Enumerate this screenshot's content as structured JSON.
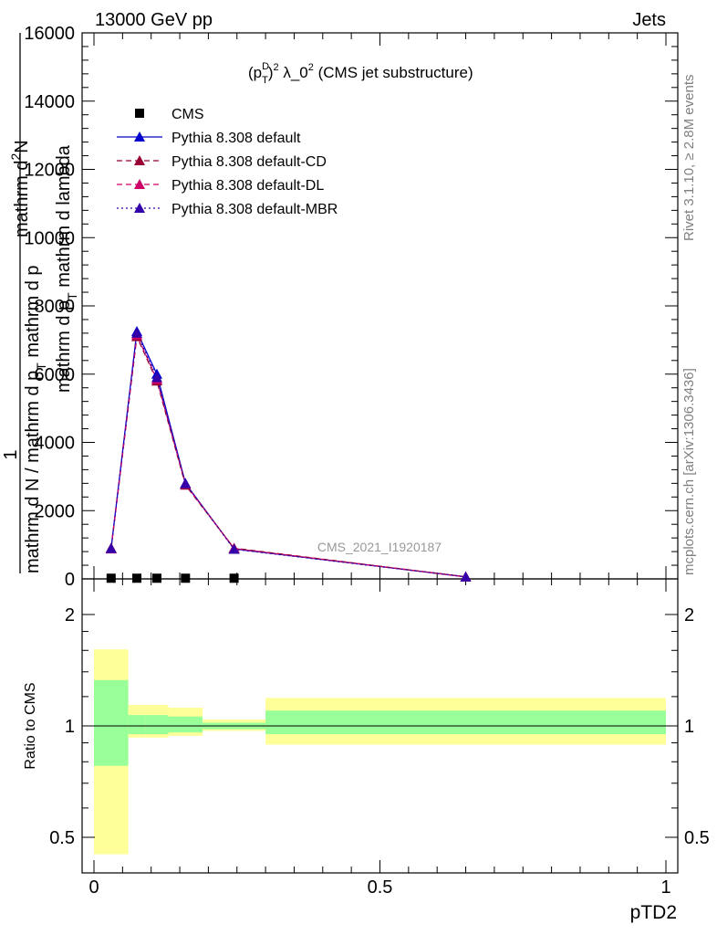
{
  "header": {
    "left": "13000 GeV pp",
    "right": "Jets"
  },
  "side_text": {
    "rivet": "Rivet 3.1.10, ≥ 2.8M events",
    "mcplots": "mcplots.cern.ch [arXiv:1306.3436]"
  },
  "watermark": "CMS_2021_I1920187",
  "ratio_ylabel": "Ratio to CMS",
  "chart_data": [
    {
      "type": "line",
      "title_parts": {
        "p": "(p",
        "sup_d": "D",
        "sub_t": "T",
        "close": ")",
        "sup_2": "2",
        "lambda": " λ_0",
        "sup_2b": "2",
        "tail": " (CMS jet substructure)"
      },
      "ylabel_parts": {
        "one": "1",
        "numerator_top": "mathrm d",
        "numerator_sup": "2",
        "numerator_N": "N",
        "denom_top": "mathrm d p",
        "denom_top_sub": "T",
        "denom_top_tail": " mathrm d lambda",
        "main": "mathrm d N / mathrm d p",
        "main_sub": "T",
        "main_tail": " mathrm d p"
      },
      "xlabel": "pTD2",
      "xlim": [
        0,
        1
      ],
      "ylim": [
        0,
        16000
      ],
      "yticks": [
        "0",
        "2000",
        "4000",
        "6000",
        "8000",
        "10000",
        "12000",
        "14000",
        "16000"
      ],
      "xticks": [
        "0",
        "0.5",
        "1"
      ],
      "legend_placement": "top-left",
      "series": [
        {
          "name": "CMS",
          "marker": "square",
          "color": "#000000",
          "x": [
            0.03,
            0.075,
            0.11,
            0.16,
            0.245
          ],
          "y": [
            20,
            20,
            20,
            20,
            20
          ]
        },
        {
          "name": "Pythia 8.308 default",
          "marker": "triangle",
          "line": "solid",
          "color": "#0000cc",
          "x": [
            0.03,
            0.075,
            0.11,
            0.16,
            0.245,
            0.65
          ],
          "y": [
            900,
            7250,
            6000,
            2800,
            880,
            60
          ]
        },
        {
          "name": "Pythia 8.308 default-CD",
          "marker": "triangle",
          "line": "dashed",
          "color": "#990033",
          "x": [
            0.03,
            0.075,
            0.11,
            0.16,
            0.245,
            0.65
          ],
          "y": [
            900,
            7100,
            5800,
            2750,
            900,
            60
          ]
        },
        {
          "name": "Pythia 8.308 default-DL",
          "marker": "triangle",
          "line": "dashed",
          "color": "#cc0066",
          "x": [
            0.03,
            0.075,
            0.11,
            0.16,
            0.245,
            0.65
          ],
          "y": [
            880,
            7150,
            5850,
            2780,
            890,
            60
          ]
        },
        {
          "name": "Pythia 8.308 default-MBR",
          "marker": "triangle",
          "line": "dotted",
          "color": "#3300aa",
          "x": [
            0.03,
            0.075,
            0.11,
            0.16,
            0.245,
            0.65
          ],
          "y": [
            890,
            7200,
            5900,
            2790,
            870,
            60
          ]
        }
      ]
    },
    {
      "type": "area",
      "ylabel": "Ratio to CMS",
      "xlim": [
        0,
        1
      ],
      "ylim": [
        0.4,
        2.2
      ],
      "yticks": [
        "0.5",
        "1",
        "2"
      ],
      "bins": [
        {
          "x0": 0.0,
          "x1": 0.06,
          "y_lo": 0.45,
          "y_hi": 1.61,
          "g_lo": 0.78,
          "g_hi": 1.33
        },
        {
          "x0": 0.06,
          "x1": 0.09,
          "y_lo": 0.93,
          "y_hi": 1.14,
          "g_lo": 0.95,
          "g_hi": 1.07
        },
        {
          "x0": 0.09,
          "x1": 0.13,
          "y_lo": 0.93,
          "y_hi": 1.14,
          "g_lo": 0.95,
          "g_hi": 1.07
        },
        {
          "x0": 0.13,
          "x1": 0.19,
          "y_lo": 0.94,
          "y_hi": 1.12,
          "g_lo": 0.96,
          "g_hi": 1.06
        },
        {
          "x0": 0.19,
          "x1": 0.3,
          "y_lo": 0.97,
          "y_hi": 1.04,
          "g_lo": 0.98,
          "g_hi": 1.02
        },
        {
          "x0": 0.3,
          "x1": 1.0,
          "y_lo": 0.89,
          "y_hi": 1.19,
          "g_lo": 0.95,
          "g_hi": 1.1
        }
      ],
      "band_colors": {
        "outer": "#ffff99",
        "inner": "#99ff99"
      }
    }
  ]
}
